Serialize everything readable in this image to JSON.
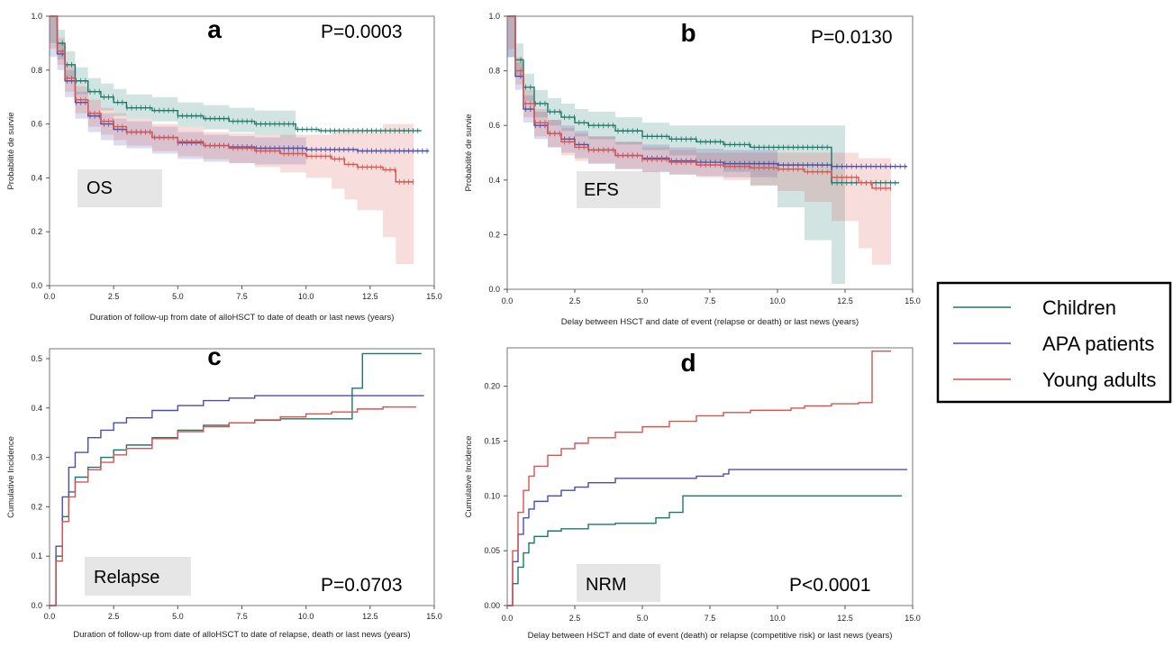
{
  "legend": {
    "items": [
      {
        "label": "Children",
        "color": "#1a7a6a"
      },
      {
        "label": "APA patients",
        "color": "#4a4ea8"
      },
      {
        "label": "Young adults",
        "color": "#d9534f"
      }
    ]
  },
  "chart_data": [
    {
      "panel": "a",
      "type": "line",
      "kind": "survival",
      "label": "OS",
      "pvalue": "P=0.0003",
      "xlabel": "Duration of follow-up from date of alloHSCT to date of death or last news (years)",
      "ylabel": "Probabilité de survie",
      "xlim": [
        0,
        15
      ],
      "ylim": [
        0,
        1.0
      ],
      "xticks": [
        "0.0",
        "2.5",
        "5.0",
        "7.5",
        "10.0",
        "12.5",
        "15.0"
      ],
      "yticks": [
        "0.0",
        "0.2",
        "0.4",
        "0.6",
        "0.8",
        "1.0"
      ],
      "series": [
        {
          "name": "Children",
          "x": [
            0,
            0.3,
            0.6,
            1,
            1.5,
            2,
            2.5,
            3,
            4,
            5,
            6,
            7,
            8,
            9,
            9.6,
            10.5,
            12,
            14.5
          ],
          "y": [
            1,
            0.9,
            0.82,
            0.76,
            0.72,
            0.7,
            0.68,
            0.66,
            0.65,
            0.63,
            0.62,
            0.61,
            0.6,
            0.6,
            0.58,
            0.575,
            0.575,
            0.575
          ],
          "band": [
            [
              0.9,
              1.0
            ],
            [
              0.84,
              0.95
            ],
            [
              0.77,
              0.87
            ],
            [
              0.71,
              0.81
            ],
            [
              0.67,
              0.77
            ],
            [
              0.65,
              0.75
            ],
            [
              0.63,
              0.73
            ],
            [
              0.62,
              0.71
            ],
            [
              0.61,
              0.7
            ],
            [
              0.59,
              0.68
            ],
            [
              0.58,
              0.67
            ],
            [
              0.57,
              0.66
            ],
            [
              0.56,
              0.65
            ],
            [
              0.55,
              0.65
            ],
            [
              0.58,
              0.58
            ],
            [
              0.575,
              0.575
            ],
            [
              0.575,
              0.575
            ],
            [
              0.575,
              0.575
            ]
          ]
        },
        {
          "name": "APA patients",
          "x": [
            0,
            0.3,
            0.6,
            1,
            1.5,
            2,
            2.5,
            3,
            4,
            5,
            6,
            7,
            8,
            10,
            12,
            14.8
          ],
          "y": [
            1,
            0.86,
            0.76,
            0.68,
            0.63,
            0.6,
            0.58,
            0.57,
            0.55,
            0.53,
            0.52,
            0.515,
            0.51,
            0.505,
            0.5,
            0.5
          ],
          "band": [
            [
              0.85,
              1
            ],
            [
              0.8,
              0.9
            ],
            [
              0.7,
              0.8
            ],
            [
              0.62,
              0.72
            ],
            [
              0.57,
              0.67
            ],
            [
              0.54,
              0.64
            ],
            [
              0.52,
              0.62
            ],
            [
              0.51,
              0.61
            ],
            [
              0.49,
              0.59
            ],
            [
              0.47,
              0.57
            ],
            [
              0.46,
              0.56
            ],
            [
              0.455,
              0.555
            ],
            [
              0.45,
              0.55
            ],
            [
              0.505,
              0.505
            ],
            [
              0.5,
              0.5
            ],
            [
              0.5,
              0.5
            ]
          ]
        },
        {
          "name": "Young adults",
          "x": [
            0,
            0.3,
            0.6,
            1,
            1.5,
            2,
            2.5,
            3,
            4,
            5,
            6,
            7,
            8,
            9,
            10,
            11,
            11.5,
            12,
            13,
            13.5,
            14.2
          ],
          "y": [
            1,
            0.87,
            0.77,
            0.69,
            0.64,
            0.61,
            0.59,
            0.57,
            0.55,
            0.535,
            0.52,
            0.51,
            0.5,
            0.49,
            0.48,
            0.47,
            0.45,
            0.44,
            0.43,
            0.385,
            0.385
          ],
          "band": [
            [
              0.88,
              1
            ],
            [
              0.82,
              0.92
            ],
            [
              0.72,
              0.82
            ],
            [
              0.64,
              0.74
            ],
            [
              0.59,
              0.69
            ],
            [
              0.56,
              0.66
            ],
            [
              0.54,
              0.64
            ],
            [
              0.52,
              0.62
            ],
            [
              0.5,
              0.6
            ],
            [
              0.48,
              0.59
            ],
            [
              0.47,
              0.57
            ],
            [
              0.455,
              0.565
            ],
            [
              0.44,
              0.56
            ],
            [
              0.42,
              0.56
            ],
            [
              0.4,
              0.56
            ],
            [
              0.36,
              0.58
            ],
            [
              0.32,
              0.58
            ],
            [
              0.28,
              0.58
            ],
            [
              0.18,
              0.6
            ],
            [
              0.08,
              0.6
            ],
            [
              0.385,
              0.385
            ]
          ]
        }
      ]
    },
    {
      "panel": "b",
      "type": "line",
      "kind": "survival",
      "label": "EFS",
      "pvalue": "P=0.0130",
      "xlabel": "Delay between HSCT and date of event (relapse or death) or last news (years)",
      "ylabel": "Probabilité de survie",
      "xlim": [
        0,
        15
      ],
      "ylim": [
        0,
        1.0
      ],
      "xticks": [
        "0.0",
        "2.5",
        "5.0",
        "7.5",
        "10.0",
        "12.5",
        "15.0"
      ],
      "yticks": [
        "0.0",
        "0.2",
        "0.4",
        "0.6",
        "0.8",
        "1.0"
      ],
      "series": [
        {
          "name": "Children",
          "x": [
            0,
            0.3,
            0.6,
            1,
            1.5,
            2,
            2.5,
            3,
            4,
            5,
            6,
            7,
            8,
            9,
            10,
            11,
            12,
            12.5,
            14.5
          ],
          "y": [
            1,
            0.84,
            0.74,
            0.68,
            0.65,
            0.63,
            0.61,
            0.6,
            0.58,
            0.56,
            0.55,
            0.54,
            0.53,
            0.52,
            0.52,
            0.52,
            0.39,
            0.39,
            0.39
          ],
          "band": [
            [
              0.85,
              1
            ],
            [
              0.78,
              0.9
            ],
            [
              0.69,
              0.79
            ],
            [
              0.63,
              0.73
            ],
            [
              0.6,
              0.7
            ],
            [
              0.58,
              0.68
            ],
            [
              0.56,
              0.66
            ],
            [
              0.55,
              0.65
            ],
            [
              0.53,
              0.63
            ],
            [
              0.51,
              0.61
            ],
            [
              0.49,
              0.6
            ],
            [
              0.47,
              0.6
            ],
            [
              0.43,
              0.6
            ],
            [
              0.38,
              0.6
            ],
            [
              0.3,
              0.6
            ],
            [
              0.18,
              0.6
            ],
            [
              0.02,
              0.6
            ],
            [
              0.39,
              0.39
            ],
            [
              0.39,
              0.39
            ]
          ]
        },
        {
          "name": "APA patients",
          "x": [
            0,
            0.3,
            0.6,
            1,
            1.5,
            2,
            2.5,
            3,
            4,
            5,
            6,
            7,
            8,
            10,
            12,
            14.8
          ],
          "y": [
            1,
            0.78,
            0.66,
            0.6,
            0.57,
            0.55,
            0.53,
            0.51,
            0.49,
            0.48,
            0.47,
            0.465,
            0.46,
            0.455,
            0.45,
            0.45
          ],
          "band": [
            [
              0.85,
              1
            ],
            [
              0.73,
              0.83
            ],
            [
              0.61,
              0.71
            ],
            [
              0.55,
              0.65
            ],
            [
              0.52,
              0.62
            ],
            [
              0.5,
              0.6
            ],
            [
              0.48,
              0.58
            ],
            [
              0.46,
              0.56
            ],
            [
              0.44,
              0.54
            ],
            [
              0.43,
              0.53
            ],
            [
              0.42,
              0.52
            ],
            [
              0.415,
              0.515
            ],
            [
              0.41,
              0.51
            ],
            [
              0.455,
              0.455
            ],
            [
              0.45,
              0.45
            ],
            [
              0.45,
              0.45
            ]
          ]
        },
        {
          "name": "Young adults",
          "x": [
            0,
            0.3,
            0.6,
            1,
            1.5,
            2,
            2.5,
            3,
            4,
            5,
            6,
            7,
            8,
            9,
            10,
            11,
            12,
            13,
            13.5,
            14.2
          ],
          "y": [
            1,
            0.8,
            0.68,
            0.61,
            0.57,
            0.54,
            0.52,
            0.51,
            0.49,
            0.475,
            0.465,
            0.455,
            0.45,
            0.445,
            0.44,
            0.43,
            0.41,
            0.39,
            0.37,
            0.37
          ],
          "band": [
            [
              0.88,
              1
            ],
            [
              0.75,
              0.85
            ],
            [
              0.63,
              0.73
            ],
            [
              0.56,
              0.66
            ],
            [
              0.52,
              0.62
            ],
            [
              0.49,
              0.59
            ],
            [
              0.47,
              0.57
            ],
            [
              0.46,
              0.56
            ],
            [
              0.44,
              0.54
            ],
            [
              0.43,
              0.52
            ],
            [
              0.42,
              0.51
            ],
            [
              0.41,
              0.5
            ],
            [
              0.4,
              0.5
            ],
            [
              0.38,
              0.5
            ],
            [
              0.36,
              0.5
            ],
            [
              0.32,
              0.5
            ],
            [
              0.25,
              0.5
            ],
            [
              0.15,
              0.48
            ],
            [
              0.09,
              0.48
            ],
            [
              0.37,
              0.37
            ]
          ]
        }
      ]
    },
    {
      "panel": "c",
      "type": "line",
      "kind": "cumulative",
      "label": "Relapse",
      "pvalue": "P=0.0703",
      "xlabel": "Duration of follow-up from date of alloHSCT to date of relapse, death or last news (years)",
      "ylabel": "Cumulative Incidence",
      "xlim": [
        0,
        15
      ],
      "ylim": [
        0,
        0.52
      ],
      "xticks": [
        "0.0",
        "2.5",
        "5.0",
        "7.5",
        "10.0",
        "12.5",
        "15.0"
      ],
      "yticks": [
        "0.0",
        "0.1",
        "0.2",
        "0.3",
        "0.4",
        "0.5"
      ],
      "series": [
        {
          "name": "Children",
          "x": [
            0,
            0.25,
            0.5,
            0.75,
            1,
            1.5,
            2,
            2.5,
            3,
            4,
            5,
            6,
            7,
            8,
            9,
            10,
            11,
            11.6,
            11.8,
            12.2,
            14.5
          ],
          "y": [
            0,
            0.1,
            0.18,
            0.23,
            0.26,
            0.28,
            0.3,
            0.315,
            0.325,
            0.34,
            0.355,
            0.365,
            0.37,
            0.375,
            0.378,
            0.378,
            0.378,
            0.378,
            0.44,
            0.51,
            0.51
          ]
        },
        {
          "name": "APA patients",
          "x": [
            0,
            0.25,
            0.5,
            0.75,
            1,
            1.5,
            2,
            2.5,
            3,
            4,
            5,
            6,
            7,
            8,
            10,
            12,
            14.6
          ],
          "y": [
            0,
            0.12,
            0.22,
            0.28,
            0.31,
            0.34,
            0.355,
            0.37,
            0.38,
            0.395,
            0.405,
            0.415,
            0.42,
            0.425,
            0.425,
            0.425,
            0.425
          ]
        },
        {
          "name": "Young adults",
          "x": [
            0,
            0.25,
            0.5,
            0.75,
            1,
            1.5,
            2,
            2.5,
            3,
            4,
            5,
            6,
            7,
            8,
            9,
            10,
            11,
            12,
            13,
            14.3
          ],
          "y": [
            0,
            0.09,
            0.17,
            0.22,
            0.25,
            0.275,
            0.29,
            0.305,
            0.318,
            0.338,
            0.352,
            0.362,
            0.37,
            0.376,
            0.382,
            0.388,
            0.392,
            0.398,
            0.402,
            0.402
          ]
        }
      ]
    },
    {
      "panel": "d",
      "type": "line",
      "kind": "cumulative",
      "label": "NRM",
      "pvalue": "P<0.0001",
      "xlabel": "Delay between HSCT and date of event (death) or relapse (competitive risk) or last news (years)",
      "ylabel": "Cumulative Incidence",
      "xlim": [
        0,
        15
      ],
      "ylim": [
        0,
        0.235
      ],
      "xticks": [
        "0.0",
        "2.5",
        "5.0",
        "7.5",
        "10.0",
        "12.5",
        "15.0"
      ],
      "yticks": [
        "0.00",
        "0.05",
        "0.10",
        "0.15",
        "0.20"
      ],
      "series": [
        {
          "name": "Children",
          "x": [
            0,
            0.2,
            0.4,
            0.6,
            0.8,
            1,
            1.5,
            2,
            3,
            4,
            5,
            5.5,
            6,
            6.5,
            8,
            10,
            12,
            14.6
          ],
          "y": [
            0,
            0.02,
            0.035,
            0.048,
            0.057,
            0.063,
            0.068,
            0.07,
            0.074,
            0.075,
            0.075,
            0.08,
            0.085,
            0.1,
            0.1,
            0.1,
            0.1,
            0.1
          ]
        },
        {
          "name": "APA patients",
          "x": [
            0,
            0.2,
            0.4,
            0.6,
            0.8,
            1,
            1.5,
            2,
            2.5,
            3,
            4,
            5,
            6,
            7,
            8,
            8.2,
            10,
            12,
            14.8
          ],
          "y": [
            0,
            0.04,
            0.065,
            0.08,
            0.088,
            0.095,
            0.1,
            0.105,
            0.108,
            0.112,
            0.116,
            0.116,
            0.116,
            0.118,
            0.12,
            0.124,
            0.124,
            0.124,
            0.124
          ]
        },
        {
          "name": "Young adults",
          "x": [
            0,
            0.2,
            0.4,
            0.6,
            0.8,
            1,
            1.5,
            2,
            2.5,
            3,
            4,
            5,
            6,
            7,
            8,
            9,
            10,
            10.5,
            11,
            12,
            13,
            13.5,
            14.2
          ],
          "y": [
            0,
            0.05,
            0.085,
            0.105,
            0.118,
            0.127,
            0.137,
            0.143,
            0.148,
            0.153,
            0.158,
            0.163,
            0.168,
            0.173,
            0.176,
            0.178,
            0.178,
            0.18,
            0.182,
            0.184,
            0.185,
            0.232,
            0.232
          ]
        }
      ]
    }
  ]
}
